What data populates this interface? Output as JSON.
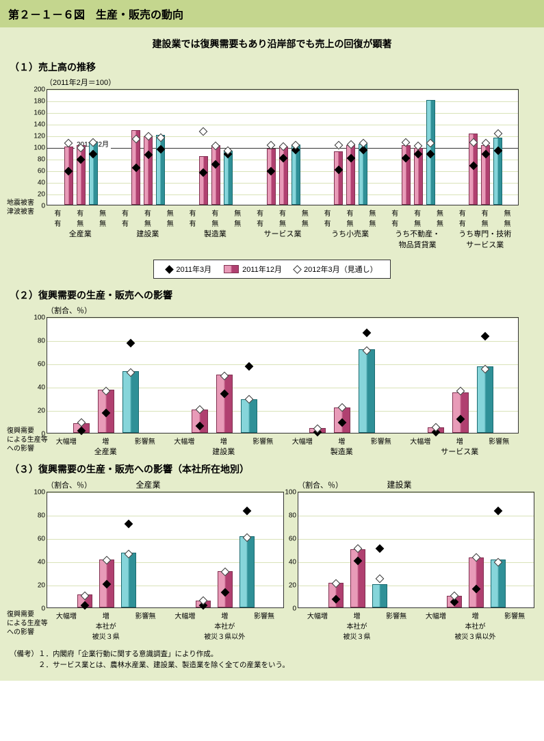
{
  "title": "第２－１－６図　生産・販売の動向",
  "subtitle": "建設業では復興需要もあり沿岸部でも売上の回復が顕著",
  "legend": {
    "mar2011": "2011年3月",
    "dec2011": "2011年12月",
    "mar2012": "2012年3月（見通し）",
    "bar_color_1": "#e89bb8",
    "bar_color_2": "#86d5da"
  },
  "chart1": {
    "title": "（１）売上高の推移",
    "ylabel": "（2011年2月＝100）",
    "ylim": [
      0,
      200
    ],
    "ytick_step": 20,
    "ref_line": 100,
    "ref_label": "2011年2月",
    "left_row_labels": [
      "地震被害",
      "津波被害"
    ],
    "sub_labels": [
      [
        "有",
        "有"
      ],
      [
        "有",
        "無"
      ],
      [
        "無",
        "無"
      ]
    ],
    "categories": [
      "全産業",
      "建設業",
      "製造業",
      "サービス業",
      "うち小売業",
      "うち不動産・\n物品賃貸業",
      "うち専門・技術\nサービス業"
    ],
    "bars_dec": [
      [
        100,
        102,
        108
      ],
      [
        128,
        118,
        120
      ],
      [
        84,
        102,
        93
      ],
      [
        96,
        100,
        104
      ],
      [
        92,
        102,
        105
      ],
      [
        102,
        98,
        180
      ],
      [
        122,
        102,
        115
      ]
    ],
    "dia_mar11": [
      [
        60,
        80,
        90
      ],
      [
        66,
        88,
        98
      ],
      [
        58,
        72,
        90
      ],
      [
        60,
        82,
        96
      ],
      [
        62,
        82,
        96
      ],
      [
        82,
        90,
        90
      ],
      [
        70,
        90,
        95
      ]
    ],
    "dia_mar12": [
      [
        108,
        100,
        110
      ],
      [
        115,
        120,
        118
      ],
      [
        128,
        103,
        95
      ],
      [
        105,
        102,
        105
      ],
      [
        105,
        106,
        108
      ],
      [
        110,
        104,
        108
      ],
      [
        110,
        108,
        125
      ]
    ]
  },
  "chart2": {
    "title": "（２）復興需要の生産・販売への影響",
    "ylabel": "（割合、％）",
    "ylim": [
      0,
      100
    ],
    "ytick_step": 20,
    "left_label": "復興需要\nによる生産等\nへの影響",
    "sub_labels": [
      "大幅増",
      "増",
      "影響無"
    ],
    "categories": [
      "全産業",
      "建設業",
      "製造業",
      "サービス業"
    ],
    "bars": [
      [
        8,
        37,
        53
      ],
      [
        20,
        50,
        29
      ],
      [
        4,
        22,
        72
      ],
      [
        5,
        35,
        57
      ]
    ],
    "dia_black": [
      [
        3,
        18,
        78
      ],
      [
        7,
        35,
        58
      ],
      [
        2,
        10,
        87
      ],
      [
        2,
        13,
        84
      ]
    ],
    "dia_white": [
      [
        10,
        37,
        53
      ],
      [
        21,
        50,
        30
      ],
      [
        5,
        23,
        72
      ],
      [
        6,
        37,
        56
      ]
    ]
  },
  "chart3": {
    "title": "（３）復興需要の生産・販売への影響（本社所在地別）",
    "ylabel": "（割合、％）",
    "ylim": [
      0,
      100
    ],
    "ytick_step": 20,
    "left_label": "復興需要\nによる生産等\nへの影響",
    "sub_labels": [
      "大幅増",
      "増",
      "影響無"
    ],
    "group_labels": [
      "本社が\n被災３県",
      "本社が\n被災３県以外"
    ],
    "panels": [
      {
        "title": "全産業",
        "bars": [
          [
            11,
            41,
            47
          ],
          [
            6,
            31,
            61
          ]
        ],
        "dia_black": [
          [
            3,
            21,
            73
          ],
          [
            3,
            14,
            84
          ]
        ],
        "dia_white": [
          [
            11,
            42,
            47
          ],
          [
            7,
            32,
            61
          ]
        ]
      },
      {
        "title": "建設業",
        "bars": [
          [
            21,
            50,
            20
          ],
          [
            10,
            43,
            41
          ]
        ],
        "dia_black": [
          [
            8,
            41,
            52
          ],
          [
            6,
            17,
            84
          ]
        ],
        "dia_white": [
          [
            22,
            52,
            26
          ],
          [
            11,
            44,
            40
          ]
        ]
      }
    ]
  },
  "notes": {
    "n1": "（備考）１．内閣府「企業行動に関する意識調査」により作成。",
    "n2": "　　　　２．サービス業とは、農林水産業、建設業、製造業を除く全ての産業をいう。"
  },
  "colors": {
    "bg": "#e5edcb",
    "title_bg": "#c4d68e",
    "grid": "#d9e3b8"
  }
}
